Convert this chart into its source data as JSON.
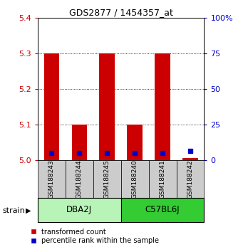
{
  "title": "GDS2877 / 1454357_at",
  "samples": [
    "GSM188243",
    "GSM188244",
    "GSM188245",
    "GSM188240",
    "GSM188241",
    "GSM188242"
  ],
  "groups": [
    {
      "name": "DBA2J",
      "indices": [
        0,
        1,
        2
      ],
      "color": "#b8f4b8"
    },
    {
      "name": "C57BL6J",
      "indices": [
        3,
        4,
        5
      ],
      "color": "#33cc33"
    }
  ],
  "red_bar_values": [
    5.3,
    5.1,
    5.3,
    5.1,
    5.3,
    5.005
  ],
  "blue_sq_left": [
    5.02,
    5.02,
    5.02,
    5.02,
    5.02,
    5.025
  ],
  "ylim_left": [
    5.0,
    5.4
  ],
  "ylim_right": [
    0,
    100
  ],
  "left_ticks": [
    5.0,
    5.1,
    5.2,
    5.3,
    5.4
  ],
  "right_ticks": [
    0,
    25,
    50,
    75,
    100
  ],
  "left_tick_color": "#cc0000",
  "right_tick_color": "#0000cc",
  "bar_color": "#cc0000",
  "square_color": "#0000cc",
  "bg_color": "#ffffff",
  "sample_bg": "#cccccc",
  "legend_red": "transformed count",
  "legend_blue": "percentile rank within the sample",
  "strain_label": "strain",
  "bar_width": 0.55
}
